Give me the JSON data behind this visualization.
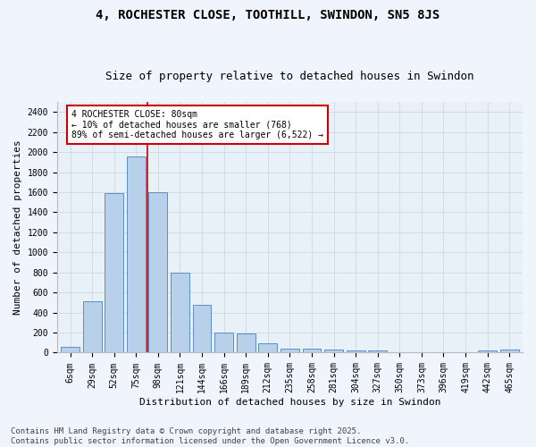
{
  "title": "4, ROCHESTER CLOSE, TOOTHILL, SWINDON, SN5 8JS",
  "subtitle": "Size of property relative to detached houses in Swindon",
  "xlabel": "Distribution of detached houses by size in Swindon",
  "ylabel": "Number of detached properties",
  "footer": "Contains HM Land Registry data © Crown copyright and database right 2025.\nContains public sector information licensed under the Open Government Licence v3.0.",
  "categories": [
    "6sqm",
    "29sqm",
    "52sqm",
    "75sqm",
    "98sqm",
    "121sqm",
    "144sqm",
    "166sqm",
    "189sqm",
    "212sqm",
    "235sqm",
    "258sqm",
    "281sqm",
    "304sqm",
    "327sqm",
    "350sqm",
    "373sqm",
    "396sqm",
    "419sqm",
    "442sqm",
    "465sqm"
  ],
  "values": [
    55,
    510,
    1590,
    1960,
    1600,
    800,
    480,
    200,
    195,
    90,
    40,
    40,
    30,
    20,
    20,
    0,
    0,
    0,
    0,
    25,
    30
  ],
  "bar_color": "#b8d0ea",
  "bar_edge_color": "#5b8ec4",
  "grid_color": "#d0d8e4",
  "bg_color": "#e8f0f8",
  "fig_bg_color": "#f0f4fc",
  "annotation_text": "4 ROCHESTER CLOSE: 80sqm\n← 10% of detached houses are smaller (768)\n89% of semi-detached houses are larger (6,522) →",
  "annotation_box_color": "#ffffff",
  "annotation_box_edge": "#cc0000",
  "vline_color": "#cc0000",
  "vline_x_index": 3.5,
  "ylim": [
    0,
    2500
  ],
  "yticks": [
    0,
    200,
    400,
    600,
    800,
    1000,
    1200,
    1400,
    1600,
    1800,
    2000,
    2200,
    2400
  ],
  "title_fontsize": 10,
  "subtitle_fontsize": 9,
  "xlabel_fontsize": 8,
  "ylabel_fontsize": 8,
  "tick_fontsize": 7,
  "annot_fontsize": 7,
  "footer_fontsize": 6.5
}
